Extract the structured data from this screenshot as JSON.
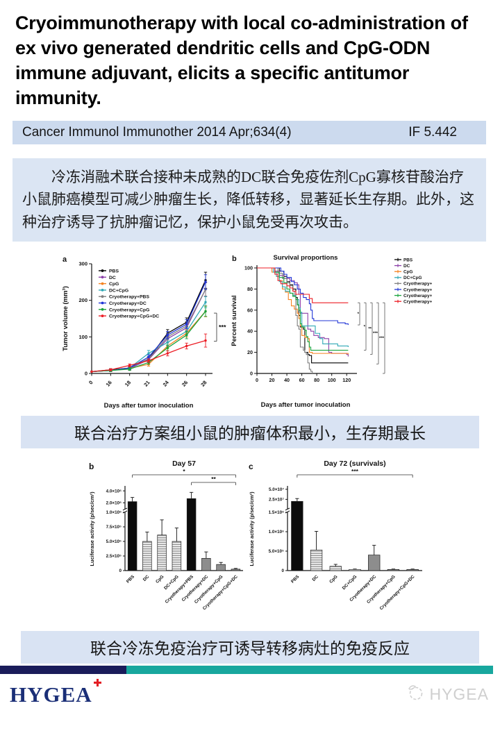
{
  "header": {
    "title": "Cryoimmunotherapy with local co-administration of ex vivo generated dendritic cells and CpG-ODN immune adjuvant, elicits a specific antitumor immunity."
  },
  "journal": {
    "citation": "Cancer Immunol Immunother 2014 Apr;634(4)",
    "impact_factor": "IF 5.442"
  },
  "abstract": {
    "text": "冷冻消融术联合接种未成熟的DC联合免疫佐剂CpG寡核苷酸治疗小鼠肺癌模型可减少肿瘤生长，降低转移，显著延长生存期。此外，这种治疗诱导了抗肿瘤记忆，保护小鼠免受再次攻击。"
  },
  "captions": {
    "figure1": "联合治疗方案组小鼠的肿瘤体积最小，生存期最长",
    "figure2": "联合冷冻免疫治疗可诱导转移病灶的免疫反应"
  },
  "footer": {
    "logo_text": "HYGEA",
    "watermark_text": "HYGEA",
    "icons": {
      "red_cross": "red-cross-icon",
      "watermark_logo": "hygea-watermark-icon"
    }
  },
  "colors": {
    "accent_navy": "#1a1c5a",
    "accent_teal": "#18a79e",
    "journal_bar_bg": "#ccdaee",
    "abstract_bg": "#dbe5f3",
    "caption_bg": "#d9e3f3",
    "logo_navy": "#1b2f77",
    "logo_red": "#e31e24",
    "watermark_gray": "#cfcfcf"
  },
  "chart_data": [
    {
      "id": "tumor_volume",
      "type": "line",
      "panel_label": "a",
      "xlabel": "Days after tumor inoculation",
      "ylabel": "Tumor volume (mm³)",
      "ylim": [
        0,
        300
      ],
      "yticks": [
        0,
        100,
        200,
        300
      ],
      "categories": [
        "0",
        "16",
        "18",
        "21",
        "24",
        "26",
        "28"
      ],
      "series": [
        {
          "name": "PBS",
          "color": "#000000",
          "values": [
            5,
            10,
            15,
            40,
            110,
            140,
            255
          ],
          "err": [
            1,
            3,
            4,
            6,
            10,
            12,
            22
          ]
        },
        {
          "name": "DC",
          "color": "#8b3fa8",
          "values": [
            5,
            8,
            13,
            38,
            95,
            125,
            230
          ],
          "err": [
            1,
            3,
            4,
            6,
            9,
            11,
            20
          ]
        },
        {
          "name": "CpG",
          "color": "#f58220",
          "values": [
            5,
            8,
            14,
            25,
            75,
            110,
            170
          ],
          "err": [
            1,
            3,
            4,
            5,
            8,
            10,
            15
          ]
        },
        {
          "name": "DC+CpG",
          "color": "#2fa8b5",
          "values": [
            5,
            8,
            15,
            55,
            85,
            115,
            195
          ],
          "err": [
            1,
            3,
            4,
            8,
            9,
            10,
            15
          ]
        },
        {
          "name": "Cryotherapy+PBS",
          "color": "#7f7f7f",
          "values": [
            5,
            8,
            15,
            40,
            100,
            130,
            230
          ],
          "err": [
            1,
            3,
            4,
            6,
            9,
            12,
            18
          ]
        },
        {
          "name": "Cryotherapy+DC",
          "color": "#2035d6",
          "values": [
            5,
            8,
            15,
            45,
            105,
            135,
            250
          ],
          "err": [
            1,
            3,
            4,
            6,
            10,
            12,
            20
          ]
        },
        {
          "name": "Cryotherapy+CpG",
          "color": "#19a33c",
          "values": [
            5,
            8,
            12,
            30,
            70,
            105,
            170
          ],
          "err": [
            1,
            3,
            4,
            5,
            8,
            10,
            14
          ]
        },
        {
          "name": "Cryotherapy+CpG+DC",
          "color": "#ec1c24",
          "values": [
            5,
            10,
            22,
            35,
            55,
            75,
            90
          ],
          "err": [
            1,
            3,
            4,
            5,
            7,
            8,
            18
          ]
        }
      ],
      "significance": {
        "top": 165,
        "bottom": 88,
        "label": "***"
      }
    },
    {
      "id": "survival",
      "type": "km_step",
      "panel_label": "b",
      "title": "Survival proportions",
      "xlabel": "Days after tumor inoculation",
      "ylabel": "Percent survival",
      "xlim": [
        0,
        130
      ],
      "xticks": [
        0,
        20,
        40,
        60,
        80,
        100,
        120
      ],
      "ylim": [
        0,
        100
      ],
      "yticks": [
        0,
        20,
        40,
        60,
        80,
        100
      ],
      "series": [
        {
          "name": "PBS",
          "color": "#000000",
          "points": [
            [
              0,
              100
            ],
            [
              30,
              97
            ],
            [
              36,
              92
            ],
            [
              40,
              87
            ],
            [
              44,
              84
            ],
            [
              48,
              80
            ],
            [
              52,
              72
            ],
            [
              54,
              65
            ],
            [
              56,
              55
            ],
            [
              58,
              44
            ],
            [
              62,
              42
            ],
            [
              64,
              20
            ],
            [
              68,
              18
            ],
            [
              70,
              17
            ],
            [
              73,
              10
            ],
            [
              122,
              10
            ]
          ]
        },
        {
          "name": "DC",
          "color": "#8b3fa8",
          "points": [
            [
              0,
              100
            ],
            [
              24,
              97
            ],
            [
              30,
              93
            ],
            [
              36,
              90
            ],
            [
              44,
              88
            ],
            [
              50,
              86
            ],
            [
              54,
              84
            ],
            [
              56,
              75
            ],
            [
              58,
              57
            ],
            [
              66,
              57
            ],
            [
              68,
              42
            ],
            [
              72,
              40
            ],
            [
              76,
              36
            ],
            [
              82,
              34
            ],
            [
              90,
              33
            ],
            [
              96,
              20
            ],
            [
              100,
              19
            ],
            [
              120,
              18
            ],
            [
              122,
              16
            ]
          ]
        },
        {
          "name": "CpG",
          "color": "#f58220",
          "points": [
            [
              0,
              100
            ],
            [
              20,
              96
            ],
            [
              26,
              92
            ],
            [
              30,
              88
            ],
            [
              34,
              80
            ],
            [
              38,
              77
            ],
            [
              42,
              70
            ],
            [
              46,
              64
            ],
            [
              50,
              61
            ],
            [
              54,
              57
            ],
            [
              56,
              52
            ],
            [
              58,
              45
            ],
            [
              60,
              36
            ],
            [
              64,
              34
            ],
            [
              68,
              33
            ],
            [
              70,
              20
            ],
            [
              74,
              19
            ],
            [
              122,
              18
            ]
          ]
        },
        {
          "name": "DC+CpG",
          "color": "#2fa8b5",
          "points": [
            [
              0,
              100
            ],
            [
              22,
              96
            ],
            [
              26,
              92
            ],
            [
              30,
              87
            ],
            [
              34,
              82
            ],
            [
              38,
              78
            ],
            [
              44,
              76
            ],
            [
              48,
              74
            ],
            [
              52,
              70
            ],
            [
              56,
              62
            ],
            [
              58,
              58
            ],
            [
              60,
              45
            ],
            [
              74,
              45
            ],
            [
              78,
              38
            ],
            [
              84,
              33
            ],
            [
              88,
              28
            ],
            [
              108,
              26
            ],
            [
              122,
              25
            ]
          ]
        },
        {
          "name": "Cryotherapy+PBS",
          "color": "#7f7f7f",
          "points": [
            [
              0,
              100
            ],
            [
              28,
              95
            ],
            [
              34,
              90
            ],
            [
              40,
              86
            ],
            [
              44,
              83
            ],
            [
              48,
              78
            ],
            [
              50,
              73
            ],
            [
              52,
              55
            ],
            [
              54,
              45
            ],
            [
              56,
              42
            ],
            [
              58,
              25
            ],
            [
              62,
              22
            ],
            [
              64,
              20
            ],
            [
              66,
              18
            ],
            [
              68,
              10
            ],
            [
              70,
              4
            ],
            [
              72,
              2
            ],
            [
              74,
              0
            ]
          ]
        },
        {
          "name": "Cryotherapy+DC",
          "color": "#2035d6",
          "points": [
            [
              0,
              100
            ],
            [
              32,
              97
            ],
            [
              36,
              94
            ],
            [
              40,
              91
            ],
            [
              46,
              87
            ],
            [
              50,
              84
            ],
            [
              54,
              80
            ],
            [
              58,
              76
            ],
            [
              62,
              72
            ],
            [
              66,
              70
            ],
            [
              70,
              66
            ],
            [
              72,
              60
            ],
            [
              74,
              52
            ],
            [
              76,
              50
            ],
            [
              88,
              50
            ],
            [
              108,
              48
            ],
            [
              118,
              47
            ],
            [
              122,
              46
            ]
          ]
        },
        {
          "name": "Cryotherapy+CpG",
          "color": "#19a33c",
          "points": [
            [
              0,
              100
            ],
            [
              24,
              96
            ],
            [
              30,
              91
            ],
            [
              36,
              86
            ],
            [
              40,
              80
            ],
            [
              44,
              76
            ],
            [
              48,
              73
            ],
            [
              52,
              70
            ],
            [
              54,
              65
            ],
            [
              56,
              60
            ],
            [
              58,
              47
            ],
            [
              60,
              44
            ],
            [
              64,
              41
            ],
            [
              66,
              35
            ],
            [
              68,
              30
            ],
            [
              70,
              25
            ],
            [
              72,
              22
            ],
            [
              122,
              22
            ]
          ]
        },
        {
          "name": "Cryotherapy+CpG+DC",
          "color": "#ec1c24",
          "points": [
            [
              0,
              100
            ],
            [
              24,
              94
            ],
            [
              28,
              88
            ],
            [
              32,
              85
            ],
            [
              40,
              83
            ],
            [
              44,
              81
            ],
            [
              48,
              78
            ],
            [
              52,
              75
            ],
            [
              66,
              75
            ],
            [
              70,
              71
            ],
            [
              74,
              67
            ],
            [
              122,
              67
            ]
          ]
        }
      ],
      "significance": [
        {
          "top": 67,
          "bottom": 46,
          "label": "*"
        },
        {
          "top": 67,
          "bottom": 22,
          "label": "*"
        },
        {
          "top": 67,
          "bottom": 18,
          "label": "**"
        },
        {
          "top": 67,
          "bottom": 9,
          "label": "***"
        },
        {
          "top": 67,
          "bottom": 0,
          "label": "***"
        }
      ]
    },
    {
      "id": "day57",
      "type": "bar_broken",
      "panel_label": "b",
      "title": "Day 57",
      "ylabel": "Luciferase activity (p/sec/cm²)",
      "axis": {
        "lower_max": 1000000,
        "lower_ticks": [
          [
            0,
            "0"
          ],
          [
            250000,
            "2.5×10⁵"
          ],
          [
            500000,
            "5.0×10⁵"
          ],
          [
            750000,
            "7.5×10⁵"
          ],
          [
            1000000,
            "1.0×10⁶"
          ]
        ],
        "upper_min": 1000000,
        "upper_max": 4600000,
        "upper_ticks": [
          [
            2000000,
            "2.0×10⁶"
          ],
          [
            4000000,
            "4.0×10⁶"
          ]
        ]
      },
      "categories": [
        "PBS",
        "DC",
        "CpG",
        "DC+CpG",
        "Cryotherapy+PBS",
        "Cryotherapy+DC",
        "Cryotherapy+CpG",
        "Cryotherapy+CpG+DC"
      ],
      "values": [
        2200000,
        500000,
        610000,
        500000,
        2700000,
        210000,
        105000,
        25000
      ],
      "errors": [
        700000,
        160000,
        260000,
        230000,
        1050000,
        110000,
        35000,
        12000
      ],
      "styles": [
        "black",
        "stripes",
        "stripes",
        "stripes",
        "black",
        "gray",
        "gray",
        "gray"
      ],
      "significance": [
        {
          "from": 0,
          "to": 7,
          "label": "*"
        },
        {
          "from": 4,
          "to": 7,
          "label": "**"
        }
      ]
    },
    {
      "id": "day72",
      "type": "bar_broken",
      "panel_label": "c",
      "title": "Day 72 (survivals)",
      "ylabel": "Luciferase activity (p/sec/cm²)",
      "axis": {
        "lower_max": 1500000,
        "lower_ticks": [
          [
            0,
            "0"
          ],
          [
            500000,
            "5.0×10⁵"
          ],
          [
            1000000,
            "1.0×10⁶"
          ],
          [
            1500000,
            "1.5×10⁶"
          ]
        ],
        "upper_min": 1500000,
        "upper_max": 55000000,
        "upper_ticks": [
          [
            25000000,
            "2.5×10⁷"
          ],
          [
            50000000,
            "5.0×10⁷"
          ]
        ]
      },
      "categories": [
        "PBS",
        "DC",
        "CpG",
        "DC+CpG",
        "Cryotherapy+DC",
        "Cryotherapy+CpG",
        "Cryotherapy+CpG+DC"
      ],
      "values": [
        20000000,
        530000,
        110000,
        30000,
        400000,
        30000,
        30000
      ],
      "errors": [
        7000000,
        480000,
        50000,
        10000,
        250000,
        10000,
        10000
      ],
      "styles": [
        "black",
        "stripes",
        "stripes",
        "stripes",
        "gray",
        "gray",
        "gray"
      ],
      "significance": [
        {
          "from": 0,
          "to": 6,
          "label": "***"
        }
      ]
    }
  ]
}
